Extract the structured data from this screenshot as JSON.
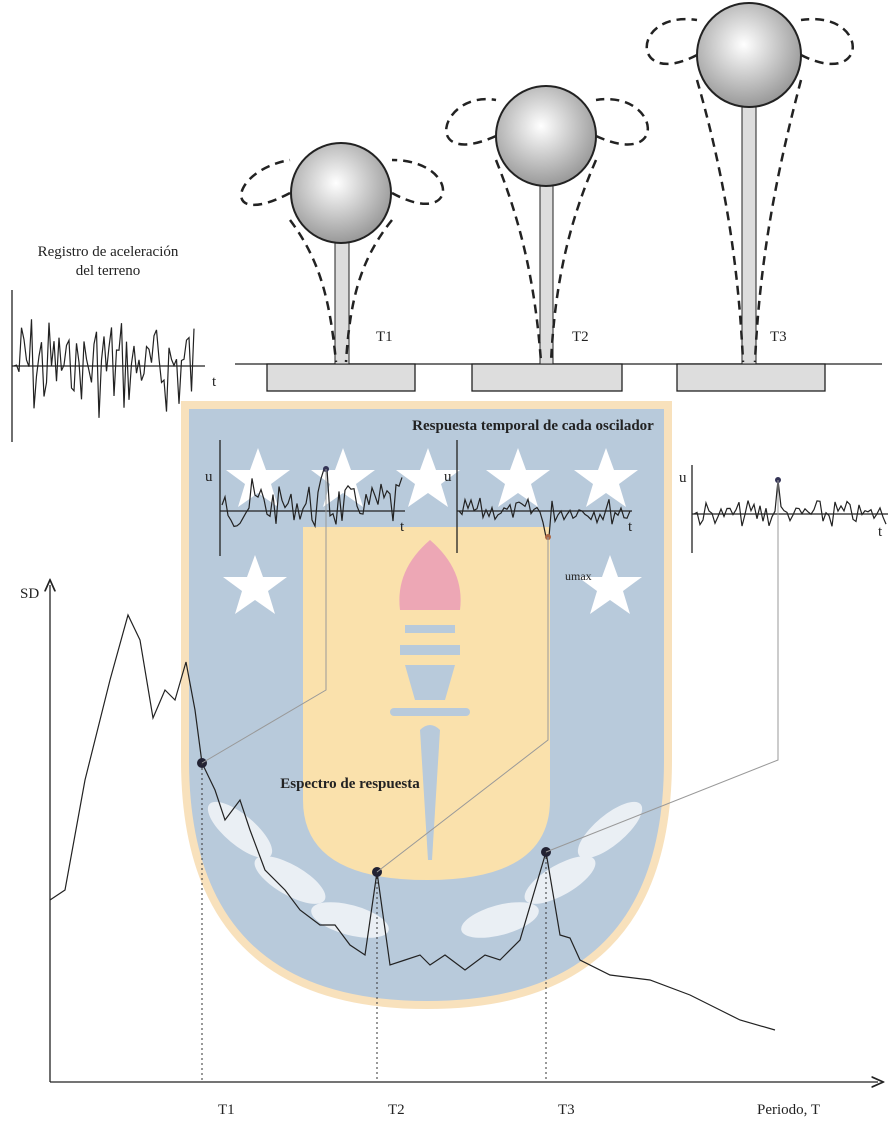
{
  "ground_record": {
    "title_lines": [
      "Registro de aceleración",
      "del terreno"
    ],
    "axis_t": "t"
  },
  "oscillators": [
    {
      "label": "T1"
    },
    {
      "label": "T2"
    },
    {
      "label": "T3"
    }
  ],
  "time_response": {
    "title": "Respuesta temporal de cada oscilador",
    "plots": [
      {
        "y_label": "u",
        "x_label": "t"
      },
      {
        "y_label": "u",
        "x_label": "t",
        "peak_label": "umax"
      },
      {
        "y_label": "u",
        "x_label": "t"
      }
    ]
  },
  "spectrum": {
    "y_label": "SD",
    "title": "Espectro de respuesta",
    "period_labels": [
      "T1",
      "T2",
      "T3"
    ],
    "x_label": "Periodo, T"
  }
}
